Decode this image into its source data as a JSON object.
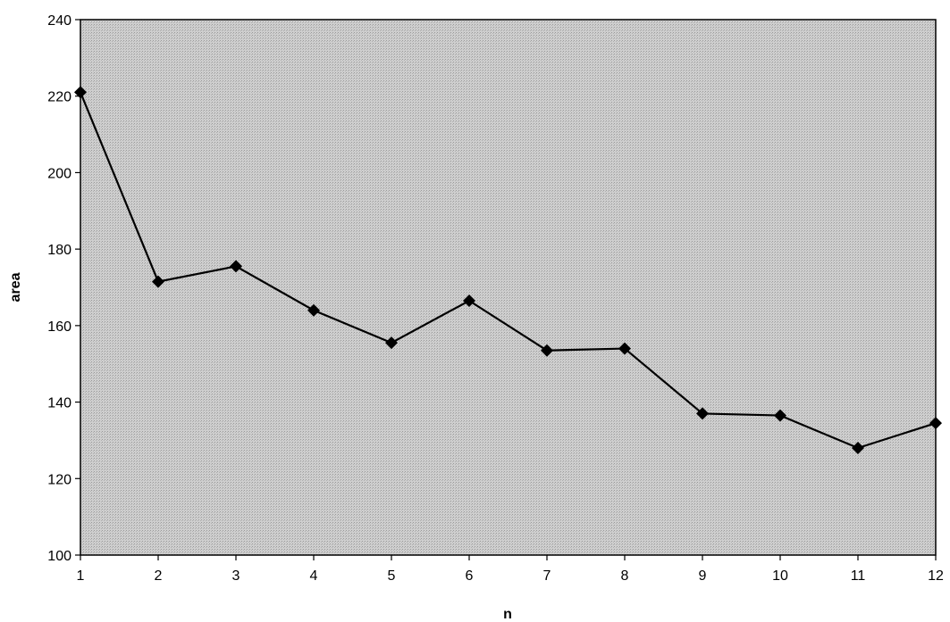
{
  "chart_data": {
    "type": "line",
    "title": "",
    "xlabel": "n",
    "ylabel": "area",
    "x": [
      1,
      2,
      3,
      4,
      5,
      6,
      7,
      8,
      9,
      10,
      11,
      12
    ],
    "series": [
      {
        "name": "",
        "values": [
          221,
          171.5,
          175.5,
          164,
          155.5,
          166.5,
          153.5,
          154,
          137,
          136.5,
          128,
          134.5
        ]
      }
    ],
    "xlim": [
      1,
      12
    ],
    "ylim": [
      100,
      240
    ],
    "yticks": [
      100,
      120,
      140,
      160,
      180,
      200,
      220,
      240
    ],
    "xticks": [
      1,
      2,
      3,
      4,
      5,
      6,
      7,
      8,
      9,
      10,
      11,
      12
    ],
    "grid": false,
    "legend": "none",
    "marker": "diamond",
    "colors": {
      "plot_background": "#c8c8c8",
      "line": "#000000",
      "marker": "#000000"
    }
  }
}
